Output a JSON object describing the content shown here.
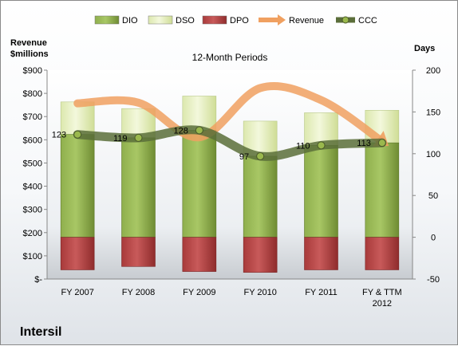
{
  "chart_data": {
    "type": "bar",
    "title": "12-Month Periods",
    "company": "Intersil",
    "left_axis_label_line1": "Revenue",
    "left_axis_label_line2": "$millions",
    "right_axis_label": "Days",
    "categories": [
      [
        "FY 2007"
      ],
      [
        "FY 2008"
      ],
      [
        "FY 2009"
      ],
      [
        "FY 2010"
      ],
      [
        "FY 2011"
      ],
      [
        "FY & TTM",
        "2012"
      ]
    ],
    "left_ylim": [
      0,
      900
    ],
    "left_ticks": [
      "$-",
      "$100",
      "$200",
      "$300",
      "$400",
      "$500",
      "$600",
      "$700",
      "$800",
      "$900"
    ],
    "right_ylim": [
      -50,
      200
    ],
    "right_ticks": [
      "-50",
      "0",
      "50",
      "100",
      "150",
      "200"
    ],
    "series": [
      {
        "name": "DIO",
        "axis": "right",
        "values": [
          123,
          119,
          128,
          97,
          110,
          113
        ],
        "color": "#7a9a3a"
      },
      {
        "name": "DSO",
        "axis": "right",
        "values": [
          39,
          35,
          41,
          42,
          39,
          39
        ],
        "color": "#e8f0c4"
      },
      {
        "name": "DPO",
        "axis": "right",
        "values": [
          -39,
          -35,
          -41,
          -42,
          -39,
          -39
        ],
        "color": "#b84343"
      },
      {
        "name": "Revenue",
        "axis": "left",
        "values": [
          757,
          760,
          611,
          823,
          771,
          593
        ],
        "color": "#f0a060"
      },
      {
        "name": "CCC",
        "axis": "right",
        "values": [
          123,
          119,
          128,
          97,
          110,
          113
        ],
        "color": "#5b6e3a"
      }
    ],
    "ccc_labels": [
      "123",
      "119",
      "128",
      "97",
      "110",
      "113"
    ],
    "legend": [
      "DIO",
      "DSO",
      "DPO",
      "Revenue",
      "CCC"
    ],
    "legend_position": "top",
    "grid": false
  }
}
